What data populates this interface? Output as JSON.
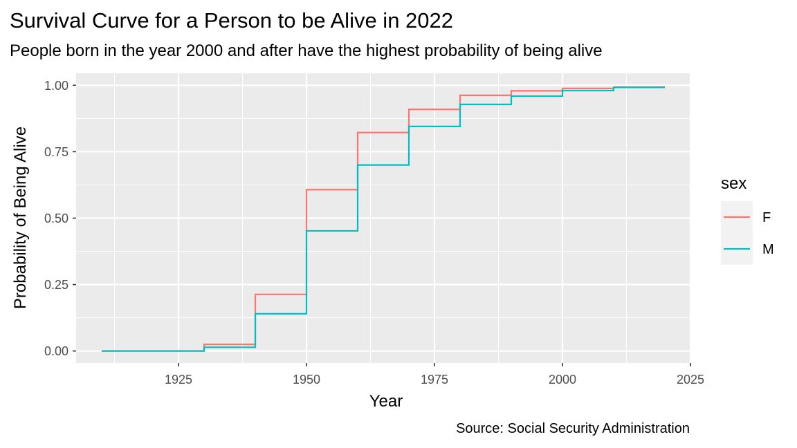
{
  "chart_data": {
    "type": "line",
    "step": true,
    "title": "Survival Curve for a Person to be Alive in 2022",
    "subtitle": "People born in the year 2000 and after have the highest probability of being alive",
    "caption": "Source: Social Security Administration",
    "xlabel": "Year",
    "ylabel": "Probability of Being Alive",
    "xlim": [
      1905,
      2025
    ],
    "ylim": [
      -0.045,
      1.045
    ],
    "x_ticks": [
      1925,
      1950,
      1975,
      2000,
      2025
    ],
    "y_ticks": [
      0.0,
      0.25,
      0.5,
      0.75,
      1.0
    ],
    "y_tick_labels": [
      "0.00",
      "0.25",
      "0.50",
      "0.75",
      "1.00"
    ],
    "grid": true,
    "legend": {
      "title": "sex",
      "position": "right"
    },
    "x": [
      1910,
      1920,
      1930,
      1940,
      1950,
      1960,
      1970,
      1980,
      1990,
      2000,
      2010,
      2020
    ],
    "series": [
      {
        "name": "F",
        "color": "#F8766D",
        "values": [
          0.0,
          0.0,
          0.025,
          0.213,
          0.607,
          0.822,
          0.909,
          0.962,
          0.979,
          0.988,
          0.993,
          0.993
        ]
      },
      {
        "name": "M",
        "color": "#00BFC4",
        "values": [
          0.0,
          0.0,
          0.014,
          0.14,
          0.452,
          0.7,
          0.845,
          0.928,
          0.959,
          0.98,
          0.992,
          0.992
        ]
      }
    ]
  }
}
